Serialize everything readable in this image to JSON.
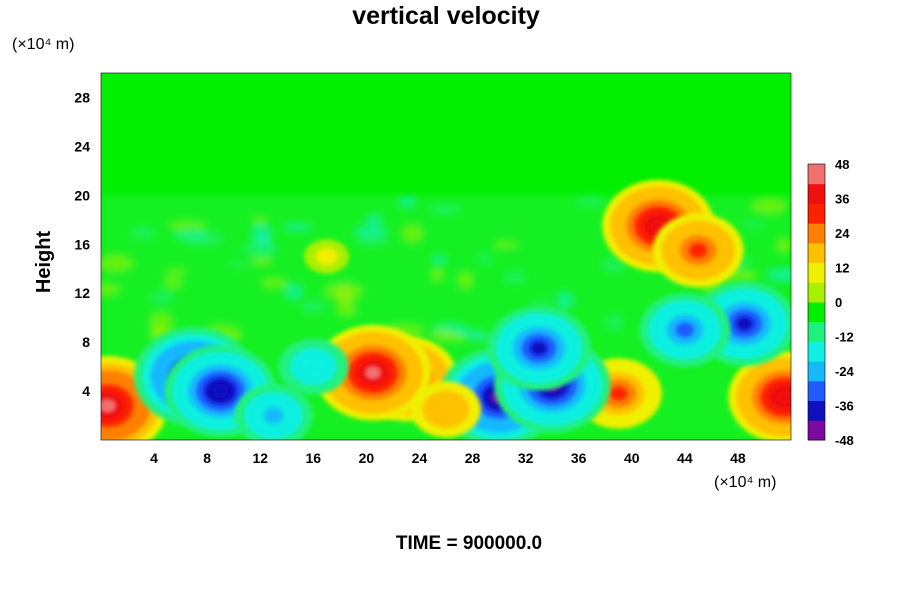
{
  "chart_data": {
    "type": "heatmap",
    "title": "vertical velocity",
    "ylabel": "Height",
    "x_unit_label": "(×10⁴ m)",
    "y_unit_label": "(×10⁴ m)",
    "xlim": [
      0,
      52
    ],
    "ylim": [
      0,
      30
    ],
    "xticks": [
      4,
      8,
      12,
      16,
      20,
      24,
      28,
      32,
      36,
      40,
      44,
      48
    ],
    "yticks": [
      4,
      8,
      12,
      16,
      20,
      24,
      28
    ],
    "colorbar": {
      "range": [
        -48,
        48
      ],
      "ticks": [
        48,
        36,
        24,
        12,
        0,
        -12,
        -24,
        -36,
        -48
      ],
      "colors": [
        "#7a0aa0",
        "#1010c0",
        "#1e5cff",
        "#18b8ff",
        "#10f0e0",
        "#20f080",
        "#00f000",
        "#a8f000",
        "#f0f000",
        "#ffc000",
        "#ff8000",
        "#ff2000",
        "#f01010",
        "#f07070"
      ]
    },
    "features": [
      {
        "x": 23,
        "y": 5,
        "value": 36
      },
      {
        "x": 20.5,
        "y": 5.5,
        "value": 42
      },
      {
        "x": 39,
        "y": 3.8,
        "value": 28
      },
      {
        "x": 0.5,
        "y": 2.8,
        "value": 44
      },
      {
        "x": 51.5,
        "y": 3.5,
        "value": 40
      },
      {
        "x": 42,
        "y": 17.5,
        "value": 40
      },
      {
        "x": 45,
        "y": 15.5,
        "value": 30
      },
      {
        "x": 7,
        "y": 5.2,
        "value": -44
      },
      {
        "x": 9,
        "y": 4,
        "value": -40
      },
      {
        "x": 30,
        "y": 3.5,
        "value": -44
      },
      {
        "x": 34,
        "y": 4.5,
        "value": -42
      },
      {
        "x": 33,
        "y": 7.5,
        "value": -36
      },
      {
        "x": 48.5,
        "y": 9.5,
        "value": -36
      },
      {
        "x": 44,
        "y": 9,
        "value": -30
      },
      {
        "x": 16,
        "y": 6,
        "value": -20
      },
      {
        "x": 13,
        "y": 2,
        "value": -24
      },
      {
        "x": 17,
        "y": 15,
        "value": 8
      },
      {
        "x": 26,
        "y": 2.5,
        "value": 20
      }
    ]
  },
  "footer": {
    "time_label": "TIME = 900000.0"
  }
}
